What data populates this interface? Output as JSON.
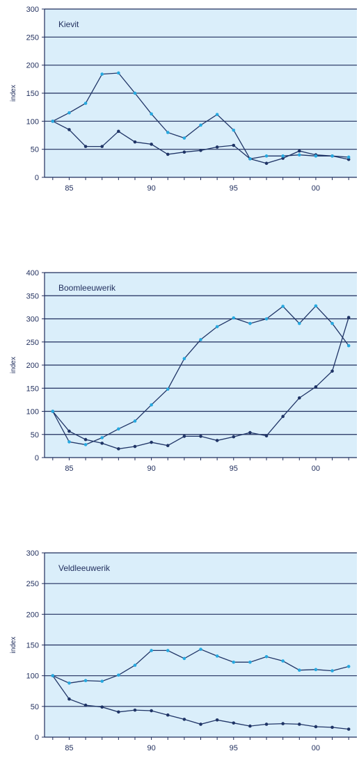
{
  "colors": {
    "background": "#daeefa",
    "grid": "#1f2d5c",
    "series_dark": "#1f3466",
    "series_light": "#26a9e0"
  },
  "chart_data": [
    {
      "type": "line",
      "title": "Kievit",
      "ylabel": "index",
      "xlabel": "",
      "ylim": [
        0,
        300
      ],
      "yticks": [
        "0",
        "50",
        "100",
        "150",
        "200",
        "250",
        "300"
      ],
      "xticks": [
        {
          "value": 1985,
          "label": "85"
        },
        {
          "value": 1990,
          "label": "90"
        },
        {
          "value": 1995,
          "label": "95"
        },
        {
          "value": 2000,
          "label": "00"
        }
      ],
      "xlim": [
        1983.5,
        2002.5
      ],
      "x": [
        1984,
        1985,
        1986,
        1987,
        1988,
        1989,
        1990,
        1991,
        1992,
        1993,
        1994,
        1995,
        1996,
        1997,
        1998,
        1999,
        2000,
        2001,
        2002
      ],
      "series": [
        {
          "color": "#1f3466",
          "values": [
            100,
            85,
            55,
            55,
            82,
            63,
            59,
            41,
            45,
            48,
            54,
            57,
            33,
            25,
            34,
            47,
            40,
            38,
            32
          ]
        },
        {
          "color": "#26a9e0",
          "values": [
            100,
            115,
            132,
            184,
            186,
            150,
            113,
            80,
            70,
            93,
            112,
            84,
            33,
            38,
            38,
            40,
            38,
            38,
            36
          ]
        }
      ]
    },
    {
      "type": "line",
      "title": "Boomleeuwerik",
      "ylabel": "index",
      "xlabel": "",
      "ylim": [
        0,
        400
      ],
      "yticks": [
        "0",
        "50",
        "100",
        "150",
        "200",
        "250",
        "300",
        "350",
        "400"
      ],
      "xticks": [
        {
          "value": 1985,
          "label": "85"
        },
        {
          "value": 1990,
          "label": "90"
        },
        {
          "value": 1995,
          "label": "95"
        },
        {
          "value": 2000,
          "label": "00"
        }
      ],
      "xlim": [
        1983.5,
        2002.5
      ],
      "x": [
        1984,
        1985,
        1986,
        1987,
        1988,
        1989,
        1990,
        1991,
        1992,
        1993,
        1994,
        1995,
        1996,
        1997,
        1998,
        1999,
        2000,
        2001,
        2002
      ],
      "series": [
        {
          "color": "#1f3466",
          "values": [
            100,
            57,
            39,
            31,
            19,
            24,
            33,
            26,
            46,
            46,
            37,
            45,
            54,
            47,
            89,
            129,
            153,
            187,
            303
          ]
        },
        {
          "color": "#26a9e0",
          "values": [
            100,
            34,
            28,
            43,
            62,
            79,
            114,
            148,
            214,
            255,
            283,
            302,
            290,
            300,
            327,
            290,
            328,
            290,
            242
          ]
        }
      ]
    },
    {
      "type": "line",
      "title": "Veldleeuwerik",
      "ylabel": "index",
      "xlabel": "",
      "ylim": [
        0,
        300
      ],
      "yticks": [
        "0",
        "50",
        "100",
        "150",
        "200",
        "250",
        "300"
      ],
      "xticks": [
        {
          "value": 1985,
          "label": "85"
        },
        {
          "value": 1990,
          "label": "90"
        },
        {
          "value": 1995,
          "label": "95"
        },
        {
          "value": 2000,
          "label": "00"
        }
      ],
      "xlim": [
        1983.5,
        2002.5
      ],
      "x": [
        1984,
        1985,
        1986,
        1987,
        1988,
        1989,
        1990,
        1991,
        1992,
        1993,
        1994,
        1995,
        1996,
        1997,
        1998,
        1999,
        2000,
        2001,
        2002
      ],
      "series": [
        {
          "color": "#1f3466",
          "values": [
            100,
            62,
            52,
            49,
            41,
            44,
            43,
            36,
            29,
            21,
            28,
            23,
            18,
            21,
            22,
            21,
            17,
            16,
            13
          ]
        },
        {
          "color": "#26a9e0",
          "values": [
            100,
            88,
            92,
            91,
            101,
            117,
            141,
            141,
            128,
            143,
            132,
            122,
            122,
            131,
            124,
            109,
            110,
            108,
            115
          ]
        }
      ]
    }
  ]
}
